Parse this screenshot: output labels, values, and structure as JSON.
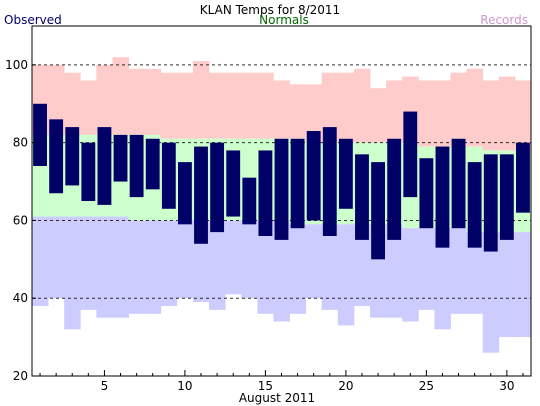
{
  "chart_data": {
    "type": "bar",
    "title": "KLAN Temps for 8/2011",
    "xlabel": "August 2011",
    "ylabel": "",
    "ylim": [
      20,
      110
    ],
    "xlim": [
      0.5,
      31.5
    ],
    "yticks": [
      20,
      40,
      60,
      80,
      100
    ],
    "xticks": [
      5,
      10,
      15,
      20,
      25,
      30
    ],
    "grid_lines_y": [
      40,
      60,
      80,
      100
    ],
    "legend": {
      "observed": "Observed",
      "normals": "Normals",
      "records": "Records"
    },
    "colors": {
      "observed": "#000066",
      "normals_label": "#006600",
      "records_label": "#cc99cc",
      "record_band": "#ffcccc",
      "normal_band": "#ccffcc",
      "low_band": "#ccccff"
    },
    "days": [
      1,
      2,
      3,
      4,
      5,
      6,
      7,
      8,
      9,
      10,
      11,
      12,
      13,
      14,
      15,
      16,
      17,
      18,
      19,
      20,
      21,
      22,
      23,
      24,
      25,
      26,
      27,
      28,
      29,
      30,
      31
    ],
    "observed_high": [
      90,
      86,
      84,
      80,
      84,
      82,
      82,
      81,
      80,
      75,
      79,
      80,
      78,
      71,
      78,
      81,
      81,
      83,
      84,
      81,
      77,
      75,
      81,
      88,
      76,
      79,
      81,
      75,
      77,
      77,
      80
    ],
    "observed_low": [
      74,
      67,
      69,
      65,
      64,
      70,
      66,
      68,
      63,
      59,
      54,
      57,
      61,
      59,
      56,
      55,
      58,
      60,
      56,
      63,
      55,
      50,
      55,
      66,
      58,
      53,
      58,
      53,
      52,
      55,
      62
    ],
    "record_high": [
      100,
      100,
      98,
      96,
      100,
      102,
      99,
      99,
      98,
      98,
      101,
      98,
      98,
      98,
      98,
      96,
      95,
      95,
      98,
      98,
      99,
      94,
      96,
      97,
      96,
      96,
      98,
      99,
      96,
      97,
      96
    ],
    "normal_high": [
      82,
      82,
      82,
      82,
      82,
      82,
      82,
      82,
      81,
      81,
      81,
      81,
      81,
      81,
      81,
      81,
      81,
      80,
      80,
      80,
      80,
      80,
      80,
      80,
      79,
      79,
      79,
      79,
      78,
      78,
      78
    ],
    "normal_low": [
      61,
      61,
      61,
      61,
      61,
      61,
      60,
      60,
      60,
      60,
      60,
      60,
      60,
      60,
      60,
      60,
      59,
      59,
      59,
      59,
      59,
      59,
      59,
      58,
      58,
      58,
      58,
      57,
      57,
      57,
      57
    ],
    "record_low": [
      38,
      40,
      32,
      37,
      35,
      35,
      36,
      36,
      38,
      40,
      39,
      37,
      41,
      40,
      36,
      34,
      36,
      40,
      37,
      33,
      38,
      35,
      35,
      34,
      37,
      32,
      36,
      36,
      26,
      30,
      30
    ]
  }
}
